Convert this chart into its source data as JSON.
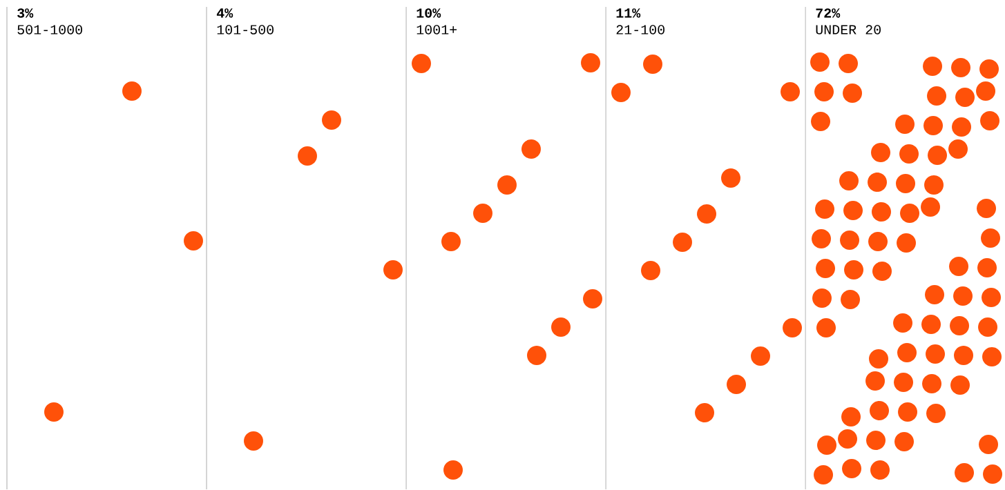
{
  "chart_data": {
    "type": "other",
    "categories": [
      "501-1000",
      "101-500",
      "1001+",
      "21-100",
      "UNDER 20"
    ],
    "values": [
      3,
      4,
      10,
      11,
      72
    ],
    "value_labels": [
      "3%",
      "4%",
      "10%",
      "11%",
      "72%"
    ],
    "color": "#ff5109"
  }
}
